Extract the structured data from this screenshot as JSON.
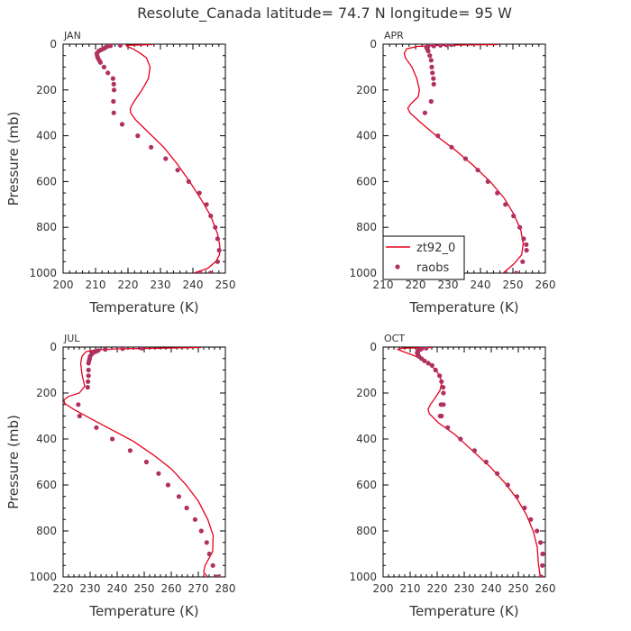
{
  "title": "Resolute_Canada   latitude= 74.7 N longitude= 95 W",
  "colors": {
    "model": "#e8001c",
    "obs": "#b03060",
    "axis": "#000000"
  },
  "legend": {
    "model_label": "zt92_0",
    "obs_label": "raobs",
    "placement": "lower-left of APR panel"
  },
  "chart_data": [
    {
      "type": "line+scatter",
      "month": "JAN",
      "xlabel": "Temperature (K)",
      "ylabel": "Pressure (mb)",
      "xlim": [
        200,
        250
      ],
      "ylim": [
        1000,
        0
      ],
      "xticks": [
        200,
        210,
        220,
        230,
        240,
        250
      ],
      "yticks": [
        0,
        200,
        400,
        600,
        800,
        1000
      ],
      "model": {
        "name": "zt92_0",
        "x": [
          227.5,
          219.5,
          219.7,
          221.5,
          223.8,
          225.7,
          226.8,
          226.3,
          224.3,
          221.9,
          220.7,
          220.8,
          222.3,
          225.2,
          231.0,
          235.0,
          239.0,
          242.6,
          245.5,
          247.6,
          248.3,
          248.2,
          247.0,
          244.5,
          241.2,
          240.4
        ],
        "y": [
          2,
          5,
          10,
          20,
          40,
          60,
          100,
          150,
          200,
          250,
          280,
          300,
          330,
          370,
          450,
          520,
          600,
          680,
          750,
          830,
          880,
          920,
          950,
          980,
          995,
          1000
        ]
      },
      "obs": {
        "name": "raobs",
        "x": [
          217.6,
          214.6,
          213.6,
          213.0,
          212.4,
          211.6,
          211.0,
          210.4,
          210.5,
          210.7,
          211.1,
          211.5,
          212.6,
          213.8,
          215.4,
          215.6,
          215.7,
          215.5,
          215.6,
          218.2,
          223.0,
          227.1,
          231.6,
          235.3,
          238.7,
          242.0,
          244.2,
          245.5,
          246.9,
          247.6,
          248.1,
          247.6,
          245.4,
          242.2
        ],
        "y": [
          5,
          7,
          10,
          15,
          20,
          25,
          30,
          40,
          50,
          60,
          70,
          80,
          100,
          125,
          150,
          175,
          200,
          250,
          300,
          350,
          400,
          450,
          500,
          550,
          600,
          650,
          700,
          750,
          800,
          850,
          900,
          950,
          1000,
          1000
        ]
      }
    },
    {
      "type": "line+scatter",
      "month": "APR",
      "xlabel": "Temperature (K)",
      "ylabel": "",
      "xlim": [
        210,
        260
      ],
      "ylim": [
        1000,
        0
      ],
      "xticks": [
        210,
        220,
        230,
        240,
        250,
        260
      ],
      "yticks": [
        0,
        200,
        400,
        600,
        800,
        1000
      ],
      "model": {
        "name": "zt92_0",
        "x": [
          245.4,
          226.4,
          220.6,
          217.3,
          216.5,
          216.9,
          218.9,
          220.4,
          221.2,
          220.8,
          218.6,
          217.6,
          218.3,
          221.4,
          226.4,
          232.0,
          237.8,
          243.0,
          247.2,
          250.2,
          252.4,
          253.2,
          252.7,
          250.3,
          247.8,
          247.0
        ],
        "y": [
          2,
          5,
          10,
          20,
          40,
          60,
          100,
          150,
          200,
          230,
          260,
          280,
          300,
          340,
          400,
          460,
          530,
          600,
          670,
          740,
          810,
          870,
          920,
          960,
          990,
          1000
        ]
      },
      "obs": {
        "name": "raobs",
        "x": [
          231.0,
          229.5,
          227.7,
          225.6,
          223.8,
          223.4,
          223.6,
          223.9,
          224.4,
          224.8,
          225.0,
          225.2,
          225.5,
          225.6,
          224.8,
          222.9,
          226.9,
          231.1,
          235.4,
          239.2,
          242.3,
          245.2,
          247.7,
          250.2,
          252.1,
          253.3,
          254.1,
          254.2,
          253.0,
          251.0
        ],
        "y": [
          2,
          3,
          5,
          8,
          10,
          15,
          20,
          30,
          50,
          70,
          100,
          125,
          150,
          175,
          250,
          300,
          400,
          450,
          500,
          550,
          600,
          650,
          700,
          750,
          800,
          850,
          875,
          900,
          950,
          1000
        ]
      }
    },
    {
      "type": "line+scatter",
      "month": "JUL",
      "xlabel": "Temperature (K)",
      "ylabel": "Pressure (mb)",
      "xlim": [
        220,
        280
      ],
      "ylim": [
        1000,
        0
      ],
      "xticks": [
        220,
        230,
        240,
        250,
        260,
        270,
        280
      ],
      "yticks": [
        0,
        200,
        400,
        600,
        800,
        1000
      ],
      "model": {
        "name": "zt92_0",
        "x": [
          271.0,
          255.0,
          240.0,
          232.0,
          228.5,
          227.0,
          226.5,
          227.0,
          228.0,
          226.0,
          222.0,
          220.3,
          220.6,
          223.8,
          230.0,
          238.0,
          246.0,
          253.5,
          260.0,
          265.5,
          270.0,
          273.5,
          275.5,
          275.3,
          272.5,
          272.0,
          273.5
        ],
        "y": [
          2,
          5,
          8,
          12,
          20,
          40,
          70,
          120,
          170,
          200,
          215,
          230,
          245,
          270,
          310,
          360,
          410,
          470,
          530,
          600,
          670,
          750,
          820,
          890,
          950,
          980,
          1000
        ]
      },
      "obs": {
        "name": "raobs",
        "x": [
          249.1,
          242.0,
          235.6,
          233.0,
          232.0,
          231.0,
          230.6,
          230.0,
          229.8,
          229.6,
          229.4,
          229.4,
          229.4,
          229.2,
          229.1,
          225.6,
          226.1,
          232.3,
          238.2,
          244.8,
          250.8,
          255.3,
          258.8,
          262.8,
          265.7,
          268.8,
          271.1,
          273.1,
          274.1,
          275.4,
          276.9,
          277.4
        ],
        "y": [
          5,
          7,
          10,
          15,
          20,
          25,
          30,
          40,
          50,
          60,
          70,
          100,
          125,
          150,
          175,
          250,
          300,
          350,
          400,
          450,
          500,
          550,
          600,
          650,
          700,
          750,
          800,
          850,
          900,
          950,
          1000,
          1000
        ]
      }
    },
    {
      "type": "line+scatter",
      "month": "OCT",
      "xlabel": "Temperature (K)",
      "ylabel": "",
      "xlim": [
        200,
        260
      ],
      "ylim": [
        1000,
        0
      ],
      "xticks": [
        200,
        210,
        220,
        230,
        240,
        250,
        260
      ],
      "yticks": [
        0,
        200,
        400,
        600,
        800,
        1000
      ],
      "model": {
        "name": "zt92_0",
        "x": [
          218.0,
          207.0,
          205.5,
          207.5,
          212.0,
          216.5,
          219.6,
          221.1,
          221.6,
          221.0,
          219.3,
          217.5,
          216.6,
          217.1,
          220.5,
          226.5,
          233.0,
          239.5,
          245.0,
          249.5,
          253.0,
          255.5,
          257.0,
          257.4,
          258.0,
          259.5
        ],
        "y": [
          2,
          5,
          10,
          20,
          40,
          70,
          100,
          130,
          160,
          190,
          220,
          250,
          270,
          290,
          330,
          380,
          450,
          520,
          590,
          660,
          730,
          800,
          870,
          940,
          990,
          1000
        ]
      },
      "obs": {
        "name": "raobs",
        "x": [
          215.9,
          214.2,
          213.8,
          213.0,
          212.8,
          212.6,
          212.8,
          213.2,
          214.2,
          215.3,
          216.7,
          218.1,
          219.4,
          220.9,
          221.6,
          222.2,
          222.3,
          222.3,
          221.6,
          221.4,
          221.1,
          223.9,
          228.6,
          233.8,
          238.1,
          242.2,
          246.1,
          249.5,
          252.3,
          254.6,
          256.9,
          258.2,
          259.0,
          258.9,
          258.4
        ],
        "y": [
          5,
          7,
          10,
          15,
          20,
          25,
          30,
          40,
          50,
          60,
          70,
          80,
          100,
          125,
          150,
          175,
          200,
          250,
          300,
          250,
          300,
          350,
          400,
          450,
          500,
          550,
          600,
          650,
          700,
          750,
          800,
          850,
          900,
          950,
          1000
        ]
      }
    }
  ]
}
